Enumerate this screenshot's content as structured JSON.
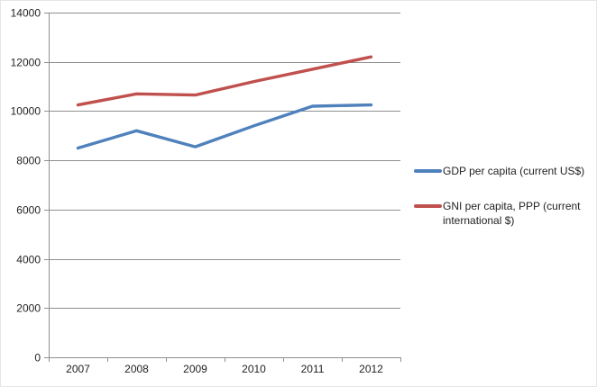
{
  "chart_data": {
    "type": "line",
    "title": "",
    "xlabel": "",
    "ylabel": "",
    "categories": [
      "2007",
      "2008",
      "2009",
      "2010",
      "2011",
      "2012"
    ],
    "series": [
      {
        "name": "GDP per capita (current US$)",
        "color": "#4F81BD",
        "values": [
          8500,
          9200,
          8550,
          9400,
          10200,
          10250
        ]
      },
      {
        "name": "GNI per capita, PPP (current international $)",
        "color": "#C0504D",
        "values": [
          10250,
          10700,
          10650,
          11200,
          11700,
          12200
        ]
      }
    ],
    "ylim": [
      0,
      14000
    ],
    "ytick_step": 2000,
    "yticks": [
      0,
      2000,
      4000,
      6000,
      8000,
      10000,
      12000,
      14000
    ],
    "grid": "horizontal",
    "legend_position": "right"
  },
  "colors": {
    "gridline": "#8f8f8f",
    "axis": "#8f8f8f",
    "text": "#232323",
    "background": "#ffffff"
  }
}
